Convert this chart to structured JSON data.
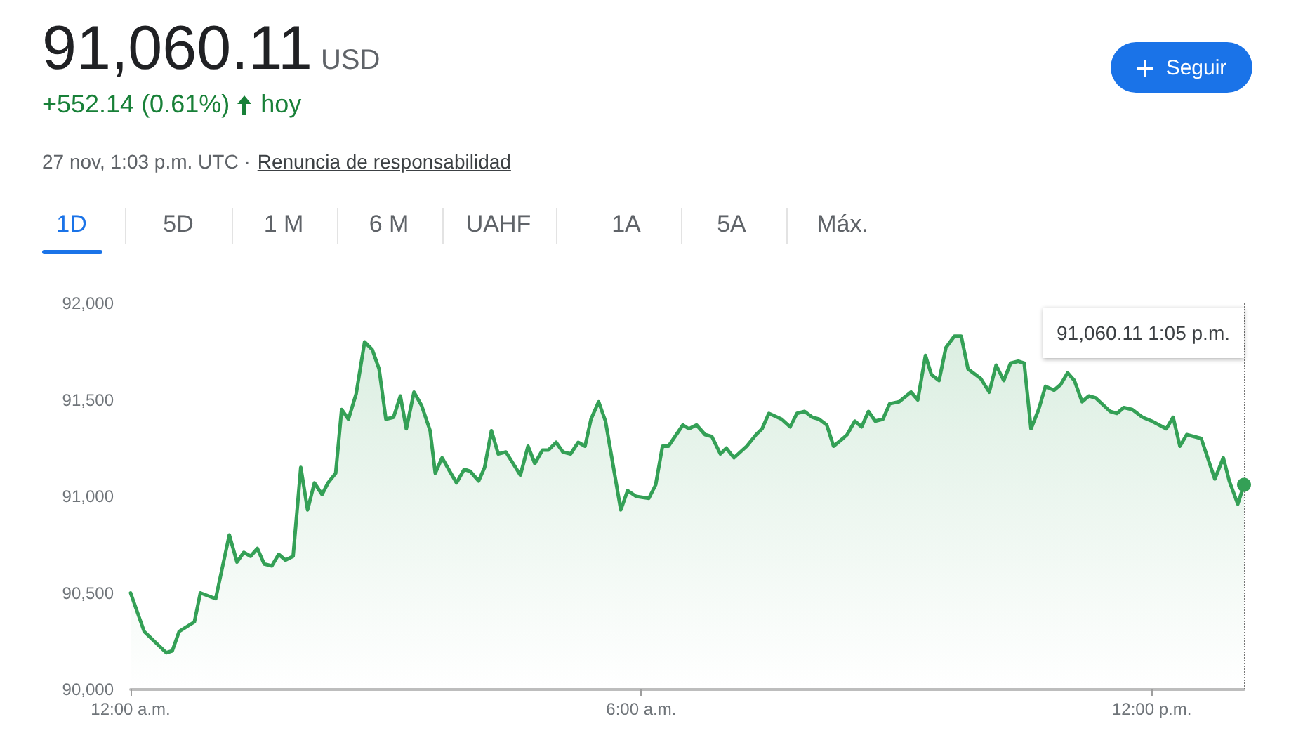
{
  "chart_data": {
    "type": "area",
    "title": "91,060.11",
    "subtitle": "+552.14 (0.61%)",
    "annotations": [
      "USD",
      "hoy",
      "27 nov, 1:03 p.m. UTC ·",
      "Renuncia de responsabilidad",
      "Seguir",
      "1D",
      "5D",
      "1 M",
      "6 M",
      "UAHF",
      "1A",
      "5A",
      "Máx.",
      "91,060.11  1:05 p.m."
    ],
    "x": [
      0,
      0.16,
      0.42,
      0.49,
      0.57,
      0.75,
      0.82,
      1.0,
      1.16,
      1.25,
      1.33,
      1.41,
      1.49,
      1.57,
      1.66,
      1.74,
      1.82,
      1.91,
      2.0,
      2.08,
      2.16,
      2.25,
      2.32,
      2.41,
      2.48,
      2.56,
      2.65,
      2.75,
      2.84,
      2.92,
      3.0,
      3.09,
      3.17,
      3.24,
      3.33,
      3.42,
      3.52,
      3.58,
      3.66,
      3.75,
      3.83,
      3.92,
      3.99,
      4.09,
      4.16,
      4.24,
      4.32,
      4.41,
      4.58,
      4.67,
      4.75,
      4.84,
      4.91,
      5.0,
      5.08,
      5.17,
      5.26,
      5.34,
      5.41,
      5.5,
      5.58,
      5.76,
      5.84,
      5.94,
      6.09,
      6.17,
      6.25,
      6.32,
      6.49,
      6.56,
      6.65,
      6.75,
      6.83,
      6.93,
      7.0,
      7.09,
      7.24,
      7.35,
      7.42,
      7.5,
      7.65,
      7.75,
      7.83,
      7.92,
      8.01,
      8.09,
      8.18,
      8.26,
      8.37,
      8.42,
      8.51,
      8.59,
      8.67,
      8.75,
      8.84,
      8.92,
      9.03,
      9.17,
      9.25,
      9.34,
      9.41,
      9.5,
      9.58,
      9.68,
      9.76,
      9.84,
      9.99,
      10.09,
      10.17,
      10.26,
      10.34,
      10.43,
      10.5,
      10.58,
      10.67,
      10.75,
      10.85,
      10.93,
      11.01,
      11.09,
      11.18,
      11.26,
      11.34,
      11.51,
      11.59,
      11.67,
      11.77,
      11.89,
      12.0,
      12.17,
      12.25,
      12.33,
      12.41,
      12.58,
      12.74,
      12.84,
      12.91,
      13.01,
      13.0833
    ],
    "series": [
      {
        "color": "#34a056",
        "values": [
          90500,
          90300,
          90190,
          90200,
          90300,
          90350,
          90500,
          90470,
          90800,
          90660,
          90710,
          90690,
          90730,
          90650,
          90640,
          90700,
          90670,
          90690,
          91150,
          90930,
          91070,
          91010,
          91070,
          91120,
          91450,
          91400,
          91530,
          91800,
          91760,
          91660,
          91400,
          91410,
          91520,
          91350,
          91540,
          91470,
          91340,
          91120,
          91200,
          91130,
          91070,
          91140,
          91130,
          91080,
          91150,
          91340,
          91220,
          91230,
          91110,
          91260,
          91170,
          91240,
          91240,
          91280,
          91230,
          91220,
          91280,
          91260,
          91400,
          91490,
          91390,
          90930,
          91030,
          91000,
          90990,
          91060,
          91260,
          91260,
          91370,
          91350,
          91370,
          91320,
          91310,
          91220,
          91250,
          91200,
          91260,
          91320,
          91350,
          91430,
          91400,
          91360,
          91430,
          91440,
          91410,
          91400,
          91370,
          91260,
          91300,
          91320,
          91390,
          91360,
          91440,
          91390,
          91400,
          91480,
          91490,
          91540,
          91500,
          91730,
          91630,
          91600,
          91770,
          91830,
          91830,
          91660,
          91610,
          91540,
          91680,
          91600,
          91690,
          91700,
          91690,
          91350,
          91450,
          91570,
          91550,
          91580,
          91640,
          91600,
          91490,
          91520,
          91510,
          91440,
          91430,
          91460,
          91450,
          91410,
          91390,
          91350,
          91410,
          91260,
          91320,
          91300,
          91090,
          91200,
          91080,
          90960,
          91060.11
        ]
      }
    ],
    "xlim": [
      0,
      13.0833
    ],
    "xticks": [
      {
        "value": 0,
        "label": "12:00 a.m."
      },
      {
        "value": 6,
        "label": "6:00 a.m."
      },
      {
        "value": 12,
        "label": "12:00 p.m."
      }
    ],
    "ylim": [
      90000,
      92000
    ],
    "yticks": [
      {
        "value": 90000,
        "label": "90,000"
      },
      {
        "value": 90500,
        "label": "90,500"
      },
      {
        "value": 91000,
        "label": "91,000"
      },
      {
        "value": 91500,
        "label": "91,500"
      },
      {
        "value": 92000,
        "label": "92,000"
      }
    ],
    "ref_lines": [
      {
        "axis": "x",
        "value": 13.0833,
        "line_style": "dotted"
      }
    ],
    "marker": "none",
    "line_style": "solid"
  }
}
